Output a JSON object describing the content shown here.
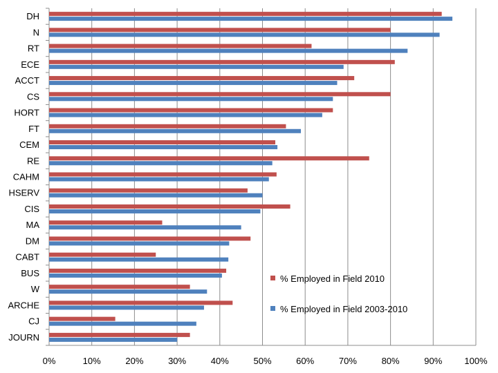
{
  "chart_data": {
    "type": "bar",
    "orientation": "horizontal",
    "categories": [
      "DH",
      "N",
      "RT",
      "ECE",
      "ACCT",
      "CS",
      "HORT",
      "FT",
      "CEM",
      "RE",
      "CAHM",
      "HSERV",
      "CIS",
      "MA",
      "DM",
      "CABT",
      "BUS",
      "W",
      "ARCHE",
      "CJ",
      "JOURN"
    ],
    "series": [
      {
        "name": "% Employed in Field 2010",
        "color": "#C0504D",
        "values": [
          92,
          80,
          61.5,
          81,
          71.5,
          80,
          66.5,
          55.5,
          53,
          75,
          53.3,
          46.5,
          56.5,
          26.5,
          47.2,
          25,
          41.5,
          33,
          43,
          15.5,
          33
        ]
      },
      {
        "name": "% Employed in Field 2003-2010",
        "color": "#4F81BD",
        "values": [
          94.5,
          91.5,
          84,
          69,
          67.5,
          66.5,
          64,
          59,
          53.5,
          52.3,
          51.5,
          50,
          49.5,
          45,
          42.2,
          42,
          40.5,
          37,
          36.3,
          34.5,
          30
        ]
      }
    ],
    "xlim": [
      0,
      100
    ],
    "x_ticks": [
      "0%",
      "10%",
      "20%",
      "30%",
      "40%",
      "50%",
      "60%",
      "70%",
      "80%",
      "90%",
      "100%"
    ],
    "grid": true,
    "legend_position": "right-lower",
    "title": "",
    "xlabel": "",
    "ylabel": ""
  }
}
